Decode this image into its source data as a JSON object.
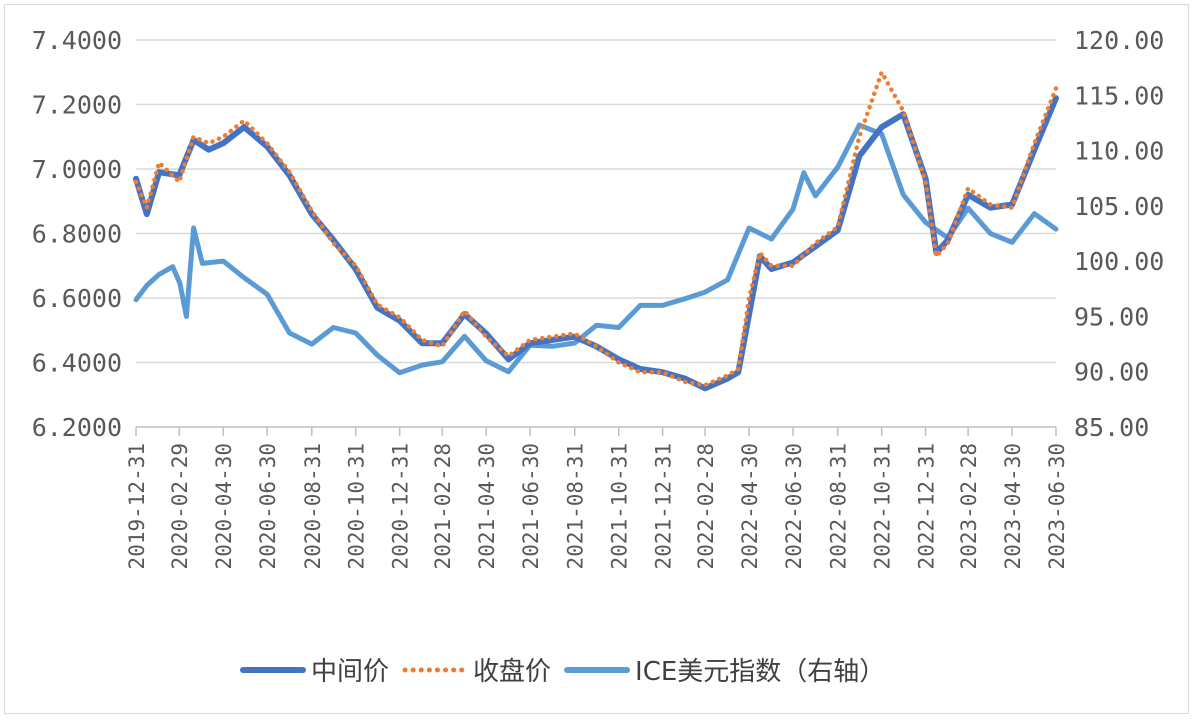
{
  "chart_data": {
    "type": "line",
    "title": "",
    "grid": true,
    "legend_position": "bottom",
    "x_tick_labels": [
      "2019-12-31",
      "2020-02-29",
      "2020-04-30",
      "2020-06-30",
      "2020-08-31",
      "2020-10-31",
      "2020-12-31",
      "2021-02-28",
      "2021-04-30",
      "2021-06-30",
      "2021-08-31",
      "2021-10-31",
      "2021-12-31",
      "2022-02-28",
      "2022-04-30",
      "2022-06-30",
      "2022-08-31",
      "2022-10-31",
      "2022-12-31",
      "2023-02-28",
      "2023-04-30",
      "2023-06-30"
    ],
    "y_left": {
      "range": [
        6.2,
        7.4
      ],
      "ticks": [
        "6.2000",
        "6.4000",
        "6.6000",
        "6.8000",
        "7.0000",
        "7.2000",
        "7.4000"
      ]
    },
    "y_right": {
      "range": [
        85,
        120
      ],
      "ticks": [
        "85.00",
        "90.00",
        "95.00",
        "100.00",
        "105.00",
        "110.00",
        "115.00",
        "120.00"
      ]
    },
    "series": [
      {
        "name": "中间价",
        "axis": "left",
        "color": "#4472C4",
        "style": "solid",
        "x": [
          "2019-12-31",
          "2020-01-15",
          "2020-02-01",
          "2020-02-29",
          "2020-03-20",
          "2020-04-10",
          "2020-04-30",
          "2020-05-29",
          "2020-06-30",
          "2020-07-31",
          "2020-08-31",
          "2020-09-30",
          "2020-10-31",
          "2020-11-30",
          "2020-12-31",
          "2021-01-31",
          "2021-02-28",
          "2021-03-31",
          "2021-04-30",
          "2021-05-31",
          "2021-06-30",
          "2021-07-31",
          "2021-08-31",
          "2021-09-30",
          "2021-10-31",
          "2021-11-30",
          "2021-12-31",
          "2022-01-31",
          "2022-02-28",
          "2022-03-31",
          "2022-04-15",
          "2022-04-30",
          "2022-05-15",
          "2022-05-31",
          "2022-06-30",
          "2022-07-31",
          "2022-08-31",
          "2022-09-30",
          "2022-10-31",
          "2022-11-30",
          "2022-12-31",
          "2023-01-15",
          "2023-01-31",
          "2023-02-28",
          "2023-03-31",
          "2023-04-30",
          "2023-05-31",
          "2023-06-30"
        ],
        "values": [
          6.97,
          6.86,
          6.99,
          6.98,
          7.09,
          7.06,
          7.08,
          7.13,
          7.07,
          6.98,
          6.86,
          6.78,
          6.69,
          6.57,
          6.53,
          6.46,
          6.46,
          6.55,
          6.49,
          6.41,
          6.46,
          6.47,
          6.48,
          6.45,
          6.41,
          6.38,
          6.37,
          6.35,
          6.32,
          6.35,
          6.37,
          6.55,
          6.73,
          6.69,
          6.71,
          6.76,
          6.81,
          7.04,
          7.13,
          7.17,
          6.97,
          6.74,
          6.78,
          6.92,
          6.88,
          6.89,
          7.06,
          7.22
        ]
      },
      {
        "name": "收盘价",
        "axis": "left",
        "color": "#ED7D31",
        "style": "dotted",
        "x": [
          "2019-12-31",
          "2020-01-15",
          "2020-02-01",
          "2020-02-29",
          "2020-03-20",
          "2020-04-10",
          "2020-04-30",
          "2020-05-29",
          "2020-06-30",
          "2020-07-31",
          "2020-08-31",
          "2020-09-30",
          "2020-10-31",
          "2020-11-30",
          "2020-12-31",
          "2021-01-31",
          "2021-02-28",
          "2021-03-31",
          "2021-04-30",
          "2021-05-31",
          "2021-06-30",
          "2021-07-31",
          "2021-08-31",
          "2021-09-30",
          "2021-10-31",
          "2021-11-30",
          "2021-12-31",
          "2022-01-31",
          "2022-02-28",
          "2022-03-31",
          "2022-04-15",
          "2022-04-30",
          "2022-05-15",
          "2022-05-31",
          "2022-06-30",
          "2022-07-31",
          "2022-08-31",
          "2022-09-30",
          "2022-10-31",
          "2022-11-30",
          "2022-12-31",
          "2023-01-15",
          "2023-01-31",
          "2023-02-28",
          "2023-03-31",
          "2023-04-30",
          "2023-05-31",
          "2023-06-30"
        ],
        "values": [
          6.96,
          6.88,
          7.02,
          6.96,
          7.1,
          7.08,
          7.1,
          7.15,
          7.08,
          6.99,
          6.87,
          6.77,
          6.7,
          6.58,
          6.54,
          6.47,
          6.45,
          6.56,
          6.48,
          6.42,
          6.47,
          6.48,
          6.49,
          6.45,
          6.4,
          6.37,
          6.37,
          6.34,
          6.33,
          6.36,
          6.38,
          6.6,
          6.74,
          6.7,
          6.7,
          6.77,
          6.82,
          7.1,
          7.3,
          7.18,
          6.96,
          6.73,
          6.77,
          6.94,
          6.89,
          6.88,
          7.08,
          7.25
        ]
      },
      {
        "name": "ICE美元指数（右轴）",
        "axis": "right",
        "color": "#5B9BD5",
        "style": "solid",
        "x": [
          "2019-12-31",
          "2020-01-15",
          "2020-02-01",
          "2020-02-20",
          "2020-03-01",
          "2020-03-10",
          "2020-03-20",
          "2020-04-01",
          "2020-04-30",
          "2020-05-29",
          "2020-06-30",
          "2020-07-31",
          "2020-08-31",
          "2020-09-30",
          "2020-10-31",
          "2020-11-30",
          "2020-12-31",
          "2021-01-31",
          "2021-02-28",
          "2021-03-31",
          "2021-04-30",
          "2021-05-31",
          "2021-06-30",
          "2021-07-31",
          "2021-08-31",
          "2021-09-30",
          "2021-10-31",
          "2021-11-30",
          "2021-12-31",
          "2022-01-31",
          "2022-02-28",
          "2022-03-31",
          "2022-04-30",
          "2022-05-31",
          "2022-06-30",
          "2022-07-15",
          "2022-07-31",
          "2022-08-31",
          "2022-09-30",
          "2022-10-31",
          "2022-11-30",
          "2022-12-31",
          "2023-01-31",
          "2023-02-28",
          "2023-03-31",
          "2023-04-30",
          "2023-05-31",
          "2023-06-30"
        ],
        "values": [
          96.5,
          97.8,
          98.8,
          99.5,
          98.0,
          95.0,
          103.0,
          99.8,
          100.0,
          98.5,
          97.0,
          93.5,
          92.5,
          94.0,
          93.5,
          91.5,
          89.9,
          90.6,
          90.9,
          93.2,
          91.0,
          90.0,
          92.4,
          92.3,
          92.6,
          94.2,
          94.0,
          96.0,
          96.0,
          96.6,
          97.2,
          98.3,
          103.0,
          102.0,
          104.7,
          108.0,
          105.9,
          108.5,
          112.3,
          111.5,
          106.0,
          103.5,
          102.1,
          104.8,
          102.5,
          101.7,
          104.3,
          102.9
        ]
      }
    ]
  }
}
